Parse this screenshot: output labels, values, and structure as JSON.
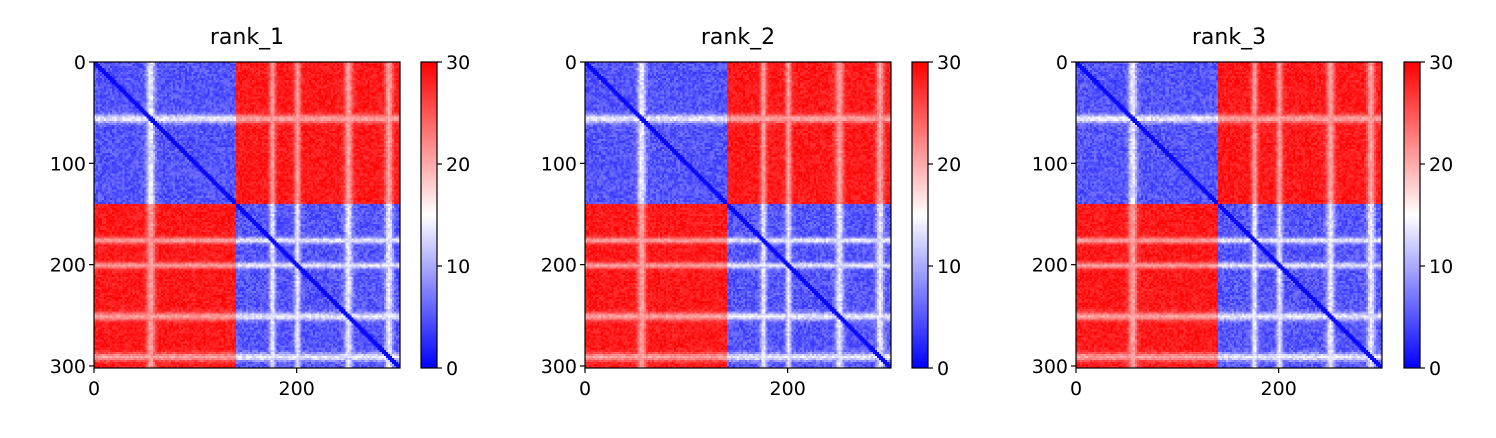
{
  "chart_data": [
    {
      "type": "heatmap",
      "title": "rank_1",
      "xlim": [
        0,
        302
      ],
      "ylim": [
        302,
        0
      ],
      "xticks": [
        0,
        200
      ],
      "yticks": [
        0,
        100,
        200,
        300
      ],
      "colorbar": {
        "min": 0,
        "max": 30,
        "ticks": [
          0,
          10,
          20,
          30
        ],
        "colormap": "bwr",
        "colors": {
          "low": "#0000ff",
          "mid": "#ffffff",
          "high": "#ff0000"
        }
      },
      "domains": [
        {
          "start": 0,
          "end": 140
        },
        {
          "start": 140,
          "end": 302
        }
      ],
      "intra_domain_distance": 3,
      "inter_domain_distance": 30
    },
    {
      "type": "heatmap",
      "title": "rank_2",
      "xlim": [
        0,
        302
      ],
      "ylim": [
        302,
        0
      ],
      "xticks": [
        0,
        200
      ],
      "yticks": [
        0,
        100,
        200,
        300
      ],
      "colorbar": {
        "min": 0,
        "max": 30,
        "ticks": [
          0,
          10,
          20,
          30
        ],
        "colormap": "bwr",
        "colors": {
          "low": "#0000ff",
          "mid": "#ffffff",
          "high": "#ff0000"
        }
      },
      "domains": [
        {
          "start": 0,
          "end": 140
        },
        {
          "start": 140,
          "end": 302
        }
      ],
      "intra_domain_distance": 3,
      "inter_domain_distance": 30
    },
    {
      "type": "heatmap",
      "title": "rank_3",
      "xlim": [
        0,
        302
      ],
      "ylim": [
        302,
        0
      ],
      "xticks": [
        0,
        200
      ],
      "yticks": [
        0,
        100,
        200,
        300
      ],
      "colorbar": {
        "min": 0,
        "max": 30,
        "ticks": [
          0,
          10,
          20,
          30
        ],
        "colormap": "bwr",
        "colors": {
          "low": "#0000ff",
          "mid": "#ffffff",
          "high": "#ff0000"
        }
      },
      "domains": [
        {
          "start": 0,
          "end": 140
        },
        {
          "start": 140,
          "end": 302
        }
      ],
      "intra_domain_distance": 3,
      "inter_domain_distance": 30
    }
  ]
}
